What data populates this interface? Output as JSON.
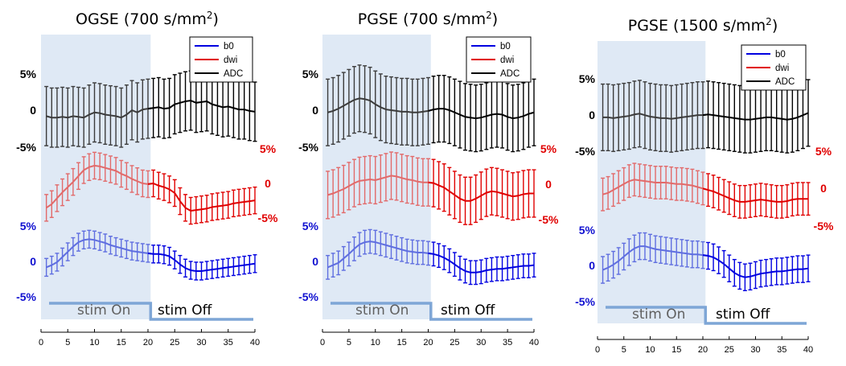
{
  "chart_data": [
    {
      "type": "line",
      "title": "OGSE (700 s/mm",
      "title_sup": "2",
      "title_tail": ")",
      "xlim": [
        0,
        40
      ],
      "x_ticks": [
        "0",
        "5",
        "10",
        "15",
        "20",
        "25",
        "30",
        "35",
        "40"
      ],
      "stim_on_range": [
        0,
        20.5
      ],
      "stim_labels": [
        "stim On",
        "stim Off"
      ],
      "legend": [
        "b0",
        "dwi",
        "ADC"
      ],
      "axis_labels": {
        "adc": [
          "5%",
          "0",
          "-5%"
        ],
        "dwi": [
          "5%",
          "0",
          "-5%"
        ],
        "b0": [
          "5%",
          "0",
          "-5%"
        ]
      },
      "series": [
        {
          "name": "ADC",
          "offset_label": "ADC",
          "values": [
            -0.8,
            -1.0,
            -1.0,
            -0.9,
            -1.0,
            -0.8,
            -0.9,
            -1.0,
            -0.6,
            -0.3,
            -0.4,
            -0.6,
            -0.7,
            -0.8,
            -1.0,
            -0.6,
            0.0,
            -0.3,
            0.1,
            0.2,
            0.3,
            0.4,
            0.2,
            0.3,
            0.8,
            1.0,
            1.2,
            1.3,
            1.0,
            1.1,
            1.2,
            0.8,
            0.6,
            0.4,
            0.5,
            0.3,
            0.1,
            0.1,
            -0.1,
            -0.2
          ],
          "err": 4.0
        },
        {
          "name": "dwi",
          "values": [
            -3.3,
            -2.8,
            -2.0,
            -1.2,
            -0.5,
            0.2,
            1.0,
            1.8,
            2.2,
            2.4,
            2.3,
            2.1,
            1.9,
            1.7,
            1.3,
            1.0,
            0.6,
            0.3,
            0.0,
            -0.1,
            0.0,
            -0.3,
            -0.5,
            -0.8,
            -1.3,
            -2.4,
            -3.3,
            -3.7,
            -3.6,
            -3.5,
            -3.4,
            -3.2,
            -3.1,
            -3.0,
            -2.9,
            -2.7,
            -2.6,
            -2.5,
            -2.4,
            -2.3
          ],
          "err": 1.8
        },
        {
          "name": "b0",
          "values": [
            -0.8,
            -0.5,
            -0.1,
            0.6,
            1.3,
            2.0,
            2.6,
            2.9,
            3.0,
            2.9,
            2.7,
            2.5,
            2.2,
            2.0,
            1.8,
            1.6,
            1.4,
            1.3,
            1.2,
            1.1,
            1.0,
            1.0,
            0.9,
            0.7,
            0.2,
            -0.4,
            -0.9,
            -1.2,
            -1.3,
            -1.3,
            -1.2,
            -1.1,
            -1.0,
            -0.9,
            -0.8,
            -0.7,
            -0.6,
            -0.5,
            -0.4,
            -0.3
          ],
          "err": 1.2
        }
      ]
    },
    {
      "type": "line",
      "title": "PGSE (700 s/mm",
      "title_sup": "2",
      "title_tail": ")",
      "xlim": [
        0,
        40
      ],
      "x_ticks": [
        "0",
        "5",
        "10",
        "15",
        "20",
        "25",
        "30",
        "35",
        "40"
      ],
      "stim_on_range": [
        0,
        20.5
      ],
      "stim_labels": [
        "stim On",
        "stim Off"
      ],
      "legend": [
        "b0",
        "dwi",
        "ADC"
      ],
      "axis_labels": {
        "adc": [
          "5%",
          "0",
          "-5%"
        ],
        "dwi": [
          "5%",
          "0",
          "-5%"
        ],
        "b0": [
          "5%",
          "0",
          "-5%"
        ]
      },
      "series": [
        {
          "name": "ADC",
          "values": [
            -0.3,
            -0.1,
            0.2,
            0.6,
            1.0,
            1.4,
            1.6,
            1.5,
            1.3,
            0.8,
            0.4,
            0.1,
            0.0,
            -0.1,
            -0.2,
            -0.2,
            -0.3,
            -0.3,
            -0.2,
            -0.1,
            0.1,
            0.2,
            0.2,
            0.0,
            -0.3,
            -0.6,
            -0.9,
            -1.0,
            -1.1,
            -1.0,
            -0.8,
            -0.6,
            -0.5,
            -0.6,
            -0.9,
            -1.1,
            -1.0,
            -0.8,
            -0.5,
            -0.3
          ],
          "err": 4.5
        },
        {
          "name": "dwi",
          "values": [
            -0.8,
            -0.6,
            -0.3,
            0.0,
            0.4,
            0.8,
            1.1,
            1.2,
            1.3,
            1.2,
            1.4,
            1.6,
            1.8,
            1.7,
            1.5,
            1.3,
            1.2,
            1.0,
            0.9,
            0.9,
            0.8,
            0.5,
            0.2,
            -0.3,
            -0.8,
            -1.3,
            -1.6,
            -1.6,
            -1.3,
            -0.9,
            -0.5,
            -0.3,
            -0.4,
            -0.6,
            -0.8,
            -1.0,
            -0.9,
            -0.7,
            -0.6,
            -0.6
          ],
          "err": 3.2
        },
        {
          "name": "b0",
          "values": [
            -0.8,
            -0.5,
            -0.2,
            0.4,
            1.0,
            1.7,
            2.3,
            2.6,
            2.7,
            2.6,
            2.4,
            2.2,
            2.0,
            1.8,
            1.6,
            1.4,
            1.3,
            1.2,
            1.2,
            1.1,
            1.0,
            0.8,
            0.5,
            0.1,
            -0.4,
            -0.9,
            -1.3,
            -1.5,
            -1.5,
            -1.4,
            -1.2,
            -1.1,
            -1.0,
            -1.0,
            -0.9,
            -0.8,
            -0.7,
            -0.6,
            -0.6,
            -0.5
          ],
          "err": 1.6
        }
      ]
    },
    {
      "type": "line",
      "title": "PGSE (1500 s/mm",
      "title_sup": "2",
      "title_tail": ")",
      "xlim": [
        0,
        40
      ],
      "x_ticks": [
        "0",
        "5",
        "10",
        "15",
        "20",
        "25",
        "30",
        "35",
        "40"
      ],
      "stim_on_range": [
        0,
        20.5
      ],
      "stim_labels": [
        "stim On",
        "stim Off"
      ],
      "legend": [
        "b0",
        "dwi",
        "ADC"
      ],
      "axis_labels": {
        "adc": [
          "5%",
          "0",
          "-5%"
        ],
        "dwi": [
          "5%",
          "0",
          "-5%"
        ],
        "b0": [
          "5%",
          "0",
          "-5%"
        ]
      },
      "series": [
        {
          "name": "ADC",
          "values": [
            -0.1,
            -0.1,
            -0.2,
            -0.1,
            0.0,
            0.1,
            0.3,
            0.4,
            0.2,
            0.0,
            -0.1,
            -0.2,
            -0.2,
            -0.3,
            -0.2,
            -0.1,
            0.0,
            0.1,
            0.2,
            0.2,
            0.3,
            0.2,
            0.1,
            0.0,
            -0.1,
            -0.2,
            -0.3,
            -0.4,
            -0.4,
            -0.3,
            -0.2,
            -0.1,
            -0.1,
            -0.2,
            -0.3,
            -0.4,
            -0.3,
            -0.1,
            0.2,
            0.5
          ],
          "err": 4.5
        },
        {
          "name": "dwi",
          "values": [
            -0.4,
            -0.2,
            0.2,
            0.6,
            1.0,
            1.4,
            1.6,
            1.5,
            1.4,
            1.3,
            1.2,
            1.2,
            1.2,
            1.1,
            1.0,
            1.0,
            0.9,
            0.8,
            0.6,
            0.4,
            0.2,
            0.0,
            -0.3,
            -0.6,
            -0.9,
            -1.2,
            -1.4,
            -1.4,
            -1.3,
            -1.2,
            -1.1,
            -1.2,
            -1.3,
            -1.4,
            -1.4,
            -1.3,
            -1.1,
            -1.0,
            -1.0,
            -1.0
          ],
          "err": 2.2
        },
        {
          "name": "b0",
          "values": [
            -0.6,
            -0.3,
            0.1,
            0.6,
            1.2,
            1.8,
            2.3,
            2.6,
            2.6,
            2.4,
            2.2,
            2.1,
            2.0,
            1.9,
            1.8,
            1.7,
            1.6,
            1.5,
            1.5,
            1.4,
            1.3,
            1.1,
            0.7,
            0.2,
            -0.4,
            -1.0,
            -1.4,
            -1.6,
            -1.5,
            -1.3,
            -1.1,
            -1.0,
            -0.9,
            -0.8,
            -0.8,
            -0.7,
            -0.6,
            -0.5,
            -0.5,
            -0.4
          ],
          "err": 1.8
        }
      ]
    }
  ],
  "colors": {
    "adc": "#000000",
    "adc_shaded": "#3c3c3c",
    "dwi": "#e00000",
    "dwi_shaded": "#e26a6a",
    "b0": "#0000e0",
    "b0_shaded": "#5f6ee0",
    "shade": "#dfe9f5",
    "stim_bar": "#7ea6d6",
    "stim_on_text": "#606060",
    "pct_red": "#e00000",
    "pct_blue": "#1010d0"
  }
}
